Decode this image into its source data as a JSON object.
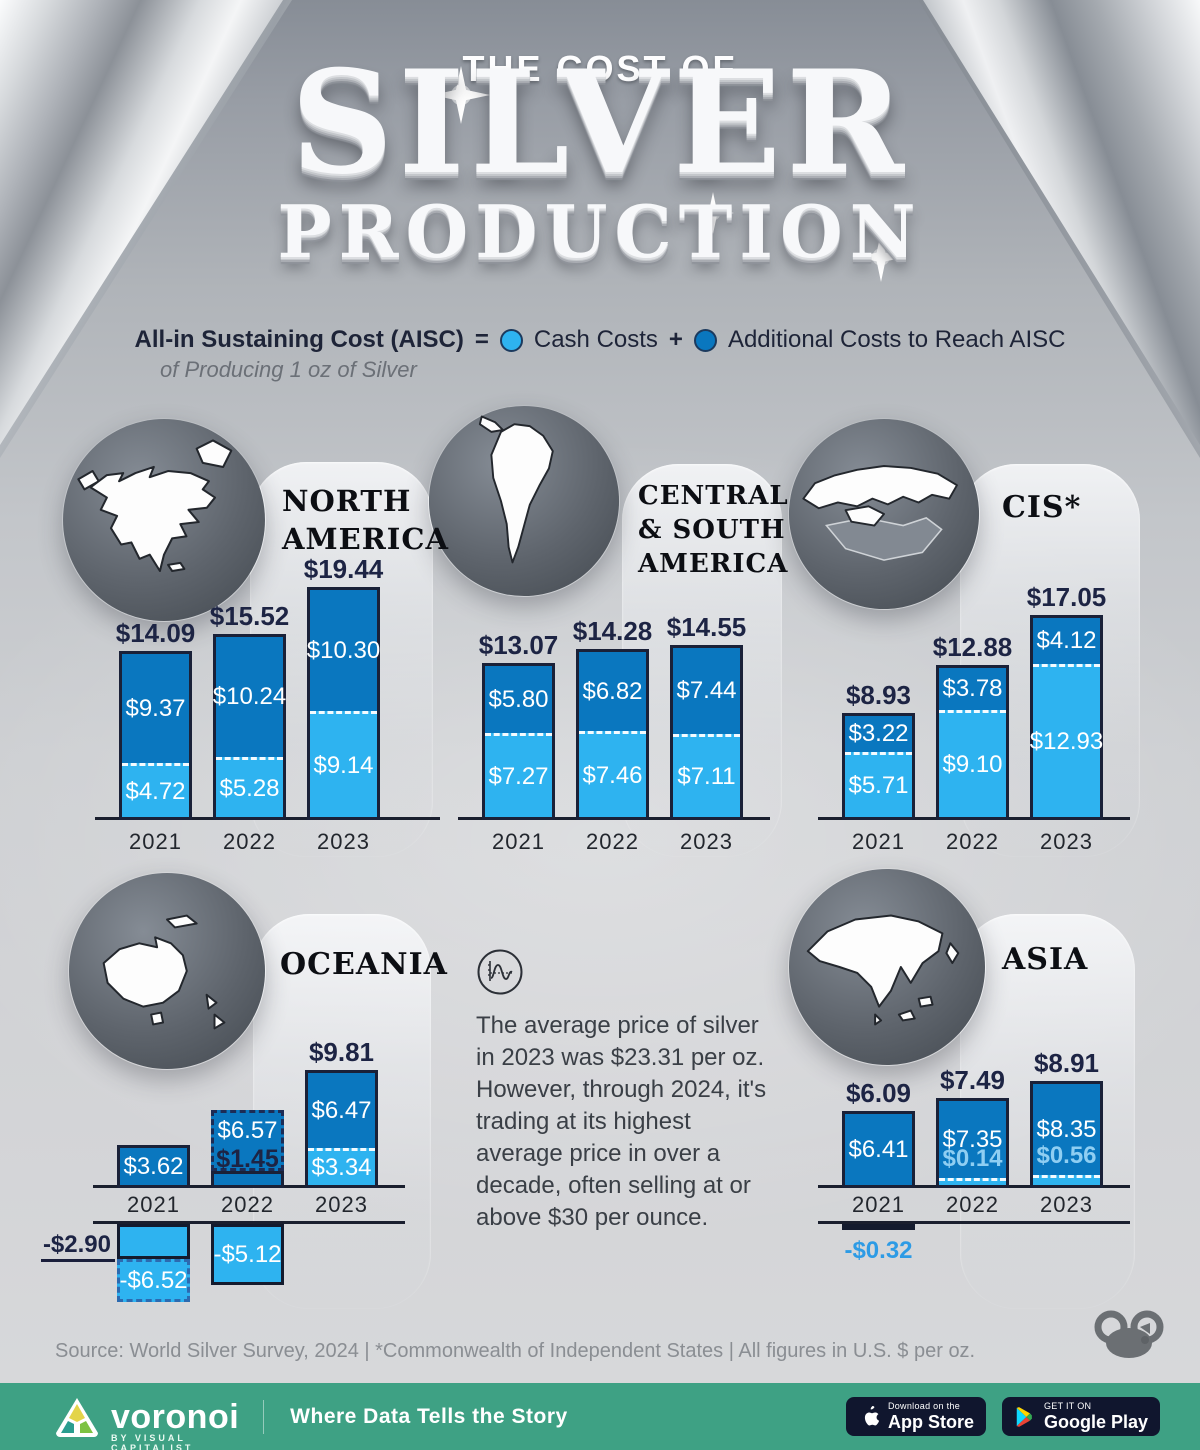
{
  "header": {
    "kicker": "THE COST OF",
    "title_line1": "SILVER",
    "title_line2": "PRODUCTION"
  },
  "legend": {
    "aisc_label": "All-in Sustaining Cost (AISC)",
    "equals": "=",
    "cash_label": "Cash Costs",
    "plus": "+",
    "additional_label": "Additional Costs to Reach AISC",
    "subtitle": "of Producing 1 oz of Silver",
    "cash_color": "#2EB3F0",
    "additional_color": "#0A77BF"
  },
  "center_note": {
    "text": "The average price of silver in 2023 was $23.31 per oz. However, through 2024, it's trading at its highest average price in over a decade, often selling at or above $30 per ounce."
  },
  "chart_data": [
    {
      "id": "north-america",
      "type": "bar",
      "title": "NORTH AMERICA",
      "unit": "U.S. $ per oz",
      "categories": [
        "2021",
        "2022",
        "2023"
      ],
      "series": [
        {
          "name": "Cash Costs",
          "values": [
            4.72,
            5.28,
            9.14
          ]
        },
        {
          "name": "Additional Costs to Reach AISC",
          "values": [
            9.37,
            10.24,
            10.3
          ]
        }
      ],
      "totals": [
        14.09,
        15.52,
        19.44
      ],
      "bars": [
        {
          "year": "2021",
          "variant": "standard",
          "cash": 4.72,
          "add": 9.37,
          "total": 14.09,
          "cash_label": "$4.72",
          "add_label": "$9.37",
          "total_label": "$14.09"
        },
        {
          "year": "2022",
          "variant": "standard",
          "cash": 5.28,
          "add": 10.24,
          "total": 15.52,
          "cash_label": "$5.28",
          "add_label": "$10.24",
          "total_label": "$15.52"
        },
        {
          "year": "2023",
          "variant": "standard",
          "cash": 9.14,
          "add": 10.3,
          "total": 19.44,
          "cash_label": "$9.14",
          "add_label": "$10.30",
          "total_label": "$19.44"
        }
      ]
    },
    {
      "id": "central-south-america",
      "type": "bar",
      "title": "CENTRAL & SOUTH AMERICA",
      "unit": "U.S. $ per oz",
      "categories": [
        "2021",
        "2022",
        "2023"
      ],
      "series": [
        {
          "name": "Cash Costs",
          "values": [
            7.27,
            7.46,
            7.11
          ]
        },
        {
          "name": "Additional Costs to Reach AISC",
          "values": [
            5.8,
            6.82,
            7.44
          ]
        }
      ],
      "totals": [
        13.07,
        14.28,
        14.55
      ],
      "bars": [
        {
          "year": "2021",
          "variant": "standard",
          "cash": 7.27,
          "add": 5.8,
          "total": 13.07,
          "cash_label": "$7.27",
          "add_label": "$5.80",
          "total_label": "$13.07"
        },
        {
          "year": "2022",
          "variant": "standard",
          "cash": 7.46,
          "add": 6.82,
          "total": 14.28,
          "cash_label": "$7.46",
          "add_label": "$6.82",
          "total_label": "$14.28"
        },
        {
          "year": "2023",
          "variant": "standard",
          "cash": 7.11,
          "add": 7.44,
          "total": 14.55,
          "cash_label": "$7.11",
          "add_label": "$7.44",
          "total_label": "$14.55"
        }
      ]
    },
    {
      "id": "cis",
      "type": "bar",
      "title": "CIS*",
      "unit": "U.S. $ per oz",
      "categories": [
        "2021",
        "2022",
        "2023"
      ],
      "series": [
        {
          "name": "Cash Costs",
          "values": [
            5.71,
            9.1,
            12.93
          ]
        },
        {
          "name": "Additional Costs to Reach AISC",
          "values": [
            3.22,
            3.78,
            4.12
          ]
        }
      ],
      "totals": [
        8.93,
        12.88,
        17.05
      ],
      "bars": [
        {
          "year": "2021",
          "variant": "standard",
          "cash": 5.71,
          "add": 3.22,
          "total": 8.93,
          "cash_label": "$5.71",
          "add_label": "$3.22",
          "total_label": "$8.93"
        },
        {
          "year": "2022",
          "variant": "standard",
          "cash": 9.1,
          "add": 3.78,
          "total": 12.88,
          "cash_label": "$9.10",
          "add_label": "$3.78",
          "total_label": "$12.88"
        },
        {
          "year": "2023",
          "variant": "standard",
          "cash": 12.93,
          "add": 4.12,
          "total": 17.05,
          "cash_label": "$12.93",
          "add_label": "$4.12",
          "total_label": "$17.05"
        }
      ]
    },
    {
      "id": "oceania",
      "type": "bar",
      "title": "OCEANIA",
      "unit": "U.S. $ per oz",
      "categories": [
        "2021",
        "2022",
        "2023"
      ],
      "series": [
        {
          "name": "Cash Costs",
          "values": [
            -6.52,
            -5.12,
            3.34
          ]
        },
        {
          "name": "Additional Costs to Reach AISC",
          "values": [
            3.62,
            6.57,
            6.47
          ]
        }
      ],
      "totals": [
        -2.9,
        1.45,
        9.81
      ],
      "bars": [
        {
          "year": "2021",
          "variant": "neg-split",
          "cash": -6.52,
          "add": 3.62,
          "total": -2.9,
          "cash_label": "-$6.52",
          "add_label": "$3.62",
          "total_label": "-$2.90"
        },
        {
          "year": "2022",
          "variant": "ghost",
          "cash": -5.12,
          "add": 6.57,
          "total": 1.45,
          "cash_label": "-$5.12",
          "add_label": "$6.57",
          "total_label": "$1.45"
        },
        {
          "year": "2023",
          "variant": "standard",
          "cash": 3.34,
          "add": 6.47,
          "total": 9.81,
          "cash_label": "$3.34",
          "add_label": "$6.47",
          "total_label": "$9.81"
        }
      ]
    },
    {
      "id": "asia",
      "type": "bar",
      "title": "ASIA",
      "unit": "U.S. $ per oz",
      "categories": [
        "2021",
        "2022",
        "2023"
      ],
      "series": [
        {
          "name": "Cash Costs",
          "values": [
            -0.32,
            0.14,
            0.56
          ]
        },
        {
          "name": "Additional Costs to Reach AISC",
          "values": [
            6.41,
            7.35,
            8.35
          ]
        }
      ],
      "totals": [
        6.09,
        7.49,
        8.91
      ],
      "bars": [
        {
          "year": "2021",
          "variant": "neg-small",
          "cash": -0.32,
          "add": 6.41,
          "total": 6.09,
          "cash_label": "-$0.32",
          "add_label": "$6.41",
          "total_label": "$6.09"
        },
        {
          "year": "2022",
          "variant": "thin-cash",
          "cash": 0.14,
          "add": 7.35,
          "total": 7.49,
          "cash_label": "$0.14",
          "add_label": "$7.35",
          "total_label": "$7.49"
        },
        {
          "year": "2023",
          "variant": "thin-cash",
          "cash": 0.56,
          "add": 8.35,
          "total": 8.91,
          "cash_label": "$0.56",
          "add_label": "$8.35",
          "total_label": "$8.91"
        }
      ]
    }
  ],
  "footer": {
    "source": "Source: World Silver Survey, 2024 | *Commonwealth of Independent States | All figures in U.S. $ per oz.",
    "brand": "voronoi",
    "brand_sub": "BY VISUAL CAPITALIST",
    "tagline": "Where Data Tells the Story",
    "appstore_top": "Download on the",
    "appstore_main": "App Store",
    "gplay_top": "GET IT ON",
    "gplay_main": "Google Play",
    "bar_color": "#3EA184"
  }
}
